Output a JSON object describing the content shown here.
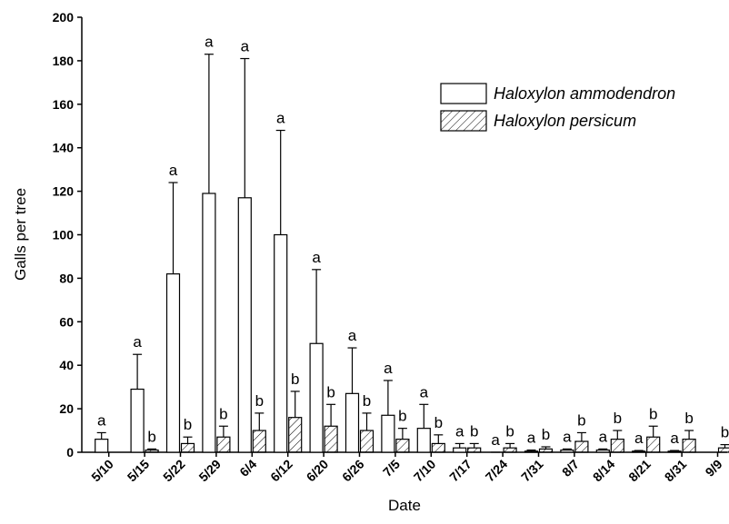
{
  "chart_data": {
    "type": "bar",
    "x_label": "Date",
    "y_label": "Galls per tree",
    "categories": [
      "5/10",
      "5/15",
      "5/22",
      "5/29",
      "6/4",
      "6/12",
      "6/20",
      "6/26",
      "7/5",
      "7/10",
      "7/17",
      "7/24",
      "7/31",
      "8/7",
      "8/14",
      "8/21",
      "8/31",
      "9/9"
    ],
    "series": [
      {
        "name": "Haloxylon ammodendron",
        "pattern": "none",
        "values": [
          6,
          29,
          82,
          119,
          117,
          100,
          50,
          27,
          17,
          11,
          2,
          0,
          0.5,
          1,
          1,
          0.5,
          0.5,
          null
        ],
        "errors": [
          3,
          16,
          42,
          64,
          64,
          48,
          34,
          21,
          16,
          11,
          2,
          0,
          0.5,
          0.5,
          0.5,
          0.3,
          0.3,
          null
        ],
        "letters": [
          "a",
          "a",
          "a",
          "a",
          "a",
          "a",
          "a",
          "a",
          "a",
          "a",
          "a",
          "a",
          "a",
          "a",
          "a",
          "a",
          "a",
          null
        ]
      },
      {
        "name": "Haloxylon persicum",
        "pattern": "hatch",
        "values": [
          null,
          1,
          4,
          7,
          10,
          16,
          12,
          10,
          6,
          4,
          2,
          2,
          1.5,
          5,
          6,
          7,
          6,
          2
        ],
        "errors": [
          null,
          0.5,
          3,
          5,
          8,
          12,
          10,
          8,
          5,
          4,
          2,
          2,
          1,
          4,
          4,
          5,
          4,
          1.5
        ],
        "letters": [
          null,
          "b",
          "b",
          "b",
          "b",
          "b",
          "b",
          "b",
          "b",
          "b",
          "b",
          "b",
          "b",
          "b",
          "b",
          "b",
          "b",
          "b"
        ]
      }
    ],
    "ylim": [
      0,
      200
    ],
    "yticks": [
      0,
      20,
      40,
      60,
      80,
      100,
      120,
      140,
      160,
      180,
      200
    ],
    "legend": "upper right"
  }
}
